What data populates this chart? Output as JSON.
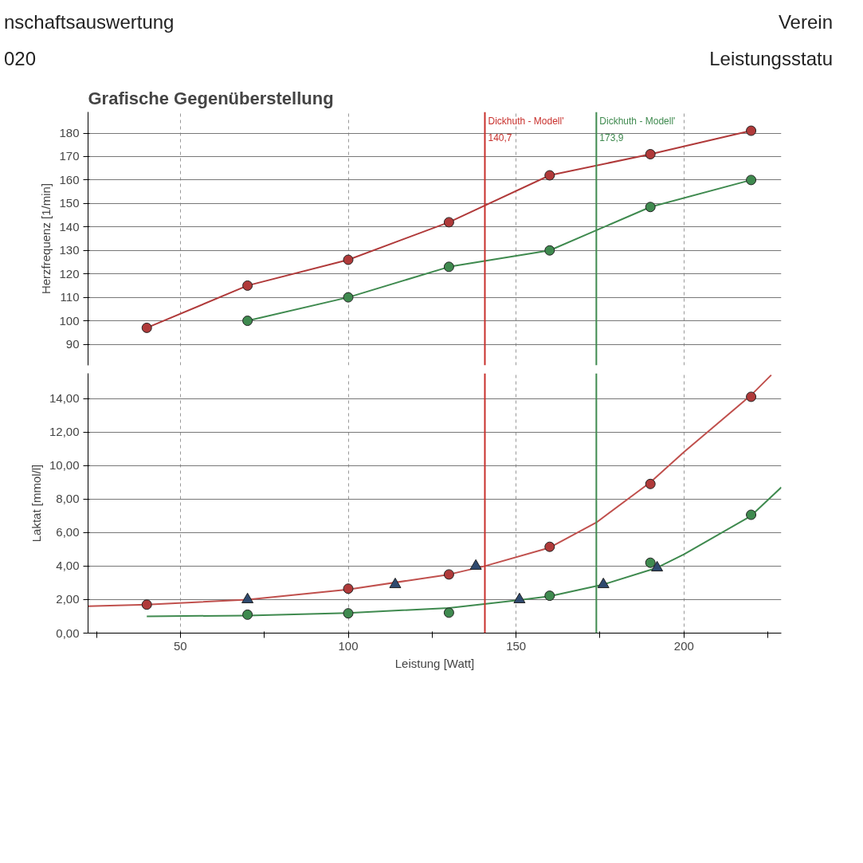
{
  "chart_data": [
    {
      "type": "line",
      "title": "Grafische Gegenüberstellung",
      "annotations": [
        "nschaftsauswertung",
        "Verein",
        "020",
        "Leistungsstatu"
      ],
      "ylabel": "Herzfrequenz [1/min]",
      "xlim": [
        22.5,
        229
      ],
      "xticks": [
        50,
        100,
        150,
        200
      ],
      "ylim": [
        81,
        189
      ],
      "yticks": [
        90,
        100,
        110,
        120,
        130,
        140,
        150,
        160,
        170,
        180
      ],
      "tick_labels": "y",
      "grid": true,
      "marker": "circle",
      "line_style": "solid",
      "series": [
        {
          "color": "#b03a3a",
          "x": [
            40,
            70,
            100,
            130,
            160,
            190,
            220
          ],
          "values": [
            97,
            115,
            126,
            142,
            162,
            171,
            181
          ]
        },
        {
          "color": "#3f8a4f",
          "x": [
            70,
            100,
            130,
            160,
            190,
            220
          ],
          "values": [
            100,
            110,
            123,
            130,
            148.5,
            160
          ]
        }
      ],
      "ref_lines": [
        {
          "axis": "x",
          "value": 140.7,
          "label": "Dickhuth - Modell'\n140,7",
          "color": "#c8302c"
        },
        {
          "axis": "x",
          "value": 173.9,
          "label": "Dickhuth - Modell'\n173,9",
          "color": "#3f8a4f"
        }
      ]
    },
    {
      "type": "scatter",
      "ylabel": "Laktat [mmol/l]",
      "xlabel": "Leistung [Watt]",
      "xlim": [
        22.5,
        229
      ],
      "xticks": [
        {
          "value": 25,
          "label": null
        },
        50,
        {
          "value": 75,
          "label": null
        },
        100,
        {
          "value": 125,
          "label": null
        },
        150,
        {
          "value": 175,
          "label": null
        },
        200,
        {
          "value": 225,
          "label": null
        }
      ],
      "ylim": [
        0,
        15.5
      ],
      "yticks": [
        {
          "value": 0,
          "label": "0,00"
        },
        {
          "value": 2,
          "label": "2,00"
        },
        {
          "value": 4,
          "label": "4,00"
        },
        {
          "value": 6,
          "label": "6,00"
        },
        {
          "value": 8,
          "label": "8,00"
        },
        {
          "value": 10,
          "label": "10,00"
        },
        {
          "value": 12,
          "label": "12,00"
        },
        {
          "value": 14,
          "label": "14,00"
        }
      ],
      "grid": true,
      "marker": "circle",
      "series": [
        {
          "type": "line",
          "marker": "none",
          "color": "#c0504d",
          "x": [
            22.5,
            40,
            70,
            100,
            130,
            140.7,
            160,
            173.9,
            190,
            200,
            220,
            226
          ],
          "values": [
            1.6,
            1.7,
            2.0,
            2.6,
            3.5,
            4.0,
            5.1,
            6.6,
            9.0,
            10.8,
            14.2,
            15.4
          ]
        },
        {
          "type": "line",
          "marker": "none",
          "color": "#3f8a4f",
          "x": [
            40,
            70,
            100,
            130,
            150,
            160,
            176,
            192,
            200,
            220,
            229
          ],
          "values": [
            1.0,
            1.05,
            1.2,
            1.5,
            1.95,
            2.2,
            2.9,
            3.9,
            4.7,
            7.0,
            8.7
          ]
        },
        {
          "color": "#b03a3a",
          "x": [
            40,
            70,
            100,
            130,
            160,
            190,
            220
          ],
          "values": [
            1.7,
            null,
            2.65,
            3.5,
            5.15,
            8.9,
            14.1
          ]
        },
        {
          "color": "#3f8a4f",
          "x": [
            70,
            100,
            130,
            160,
            190,
            220
          ],
          "values": [
            1.1,
            1.18,
            1.22,
            2.23,
            4.2,
            7.06
          ]
        },
        {
          "color": "#2f4a6f",
          "marker": "triangle",
          "x": [
            70,
            114,
            138,
            151,
            176,
            192
          ],
          "values": [
            2.0,
            2.9,
            4.0,
            2.0,
            2.9,
            3.9
          ]
        }
      ],
      "ref_lines": [
        {
          "axis": "x",
          "value": 140.7,
          "color": "#c8302c"
        },
        {
          "axis": "x",
          "value": 173.9,
          "color": "#3f8a4f"
        }
      ]
    }
  ]
}
